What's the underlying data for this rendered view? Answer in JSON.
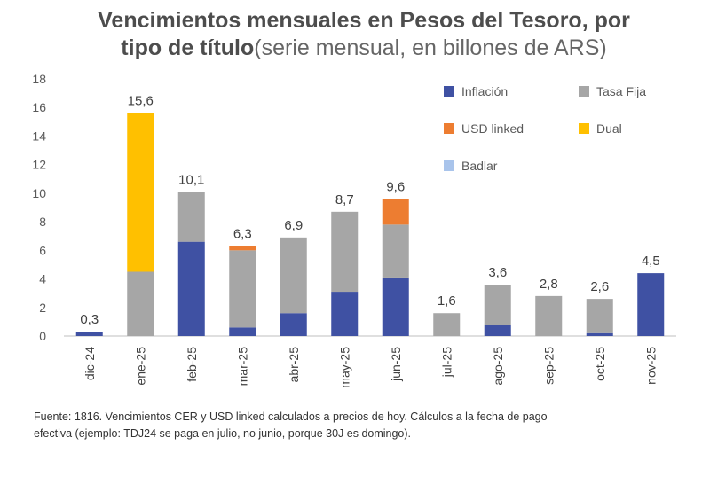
{
  "title": {
    "line1": "Vencimientos mensuales en Pesos del Tesoro, por",
    "line2_bold": "tipo de título",
    "line2_light": "(serie mensual, en billones de ARS)"
  },
  "footer": {
    "line1": "Fuente: 1816. Vencimientos CER y USD linked calculados a precios de hoy. Cálculos a la fecha de pago",
    "line2": "efectiva (ejemplo: TDJ24 se paga en julio, no junio, porque 30J es domingo)."
  },
  "chart_data": {
    "type": "bar",
    "stacked": true,
    "title": "Vencimientos mensuales en Pesos del Tesoro, por tipo de título (serie mensual, en billones de ARS)",
    "categories": [
      "dic-24",
      "ene-25",
      "feb-25",
      "mar-25",
      "abr-25",
      "may-25",
      "jun-25",
      "jul-25",
      "ago-25",
      "sep-25",
      "oct-25",
      "nov-25"
    ],
    "series": [
      {
        "name": "Inflación",
        "color": "#3f51a3",
        "values": [
          0.3,
          0,
          6.6,
          0.6,
          1.6,
          3.1,
          4.1,
          0,
          0.8,
          0,
          0.2,
          4.4
        ]
      },
      {
        "name": "Tasa Fija",
        "color": "#a6a6a6",
        "values": [
          0,
          4.5,
          3.5,
          5.4,
          5.3,
          5.6,
          3.7,
          1.6,
          2.8,
          2.8,
          2.4,
          0
        ]
      },
      {
        "name": "USD linked",
        "color": "#ed7d31",
        "values": [
          0,
          0,
          0,
          0.3,
          0,
          0,
          1.8,
          0,
          0,
          0,
          0,
          0
        ]
      },
      {
        "name": "Dual",
        "color": "#ffc000",
        "values": [
          0,
          11.1,
          0,
          0,
          0,
          0,
          0,
          0,
          0,
          0,
          0,
          0
        ]
      },
      {
        "name": "Badlar",
        "color": "#a9c4eb",
        "values": [
          0,
          0,
          0,
          0,
          0,
          0,
          0,
          0,
          0,
          0,
          0,
          0
        ]
      }
    ],
    "totals": [
      "0,3",
      "15,6",
      "10,1",
      "6,3",
      "6,9",
      "8,7",
      "9,6",
      "1,6",
      "3,6",
      "2,8",
      "2,6",
      "4,5"
    ],
    "ylim": [
      0,
      18
    ],
    "yticks": [
      0,
      2,
      4,
      6,
      8,
      10,
      12,
      14,
      16,
      18
    ],
    "xlabel": "",
    "ylabel": "",
    "legend_placement": "top-right"
  }
}
